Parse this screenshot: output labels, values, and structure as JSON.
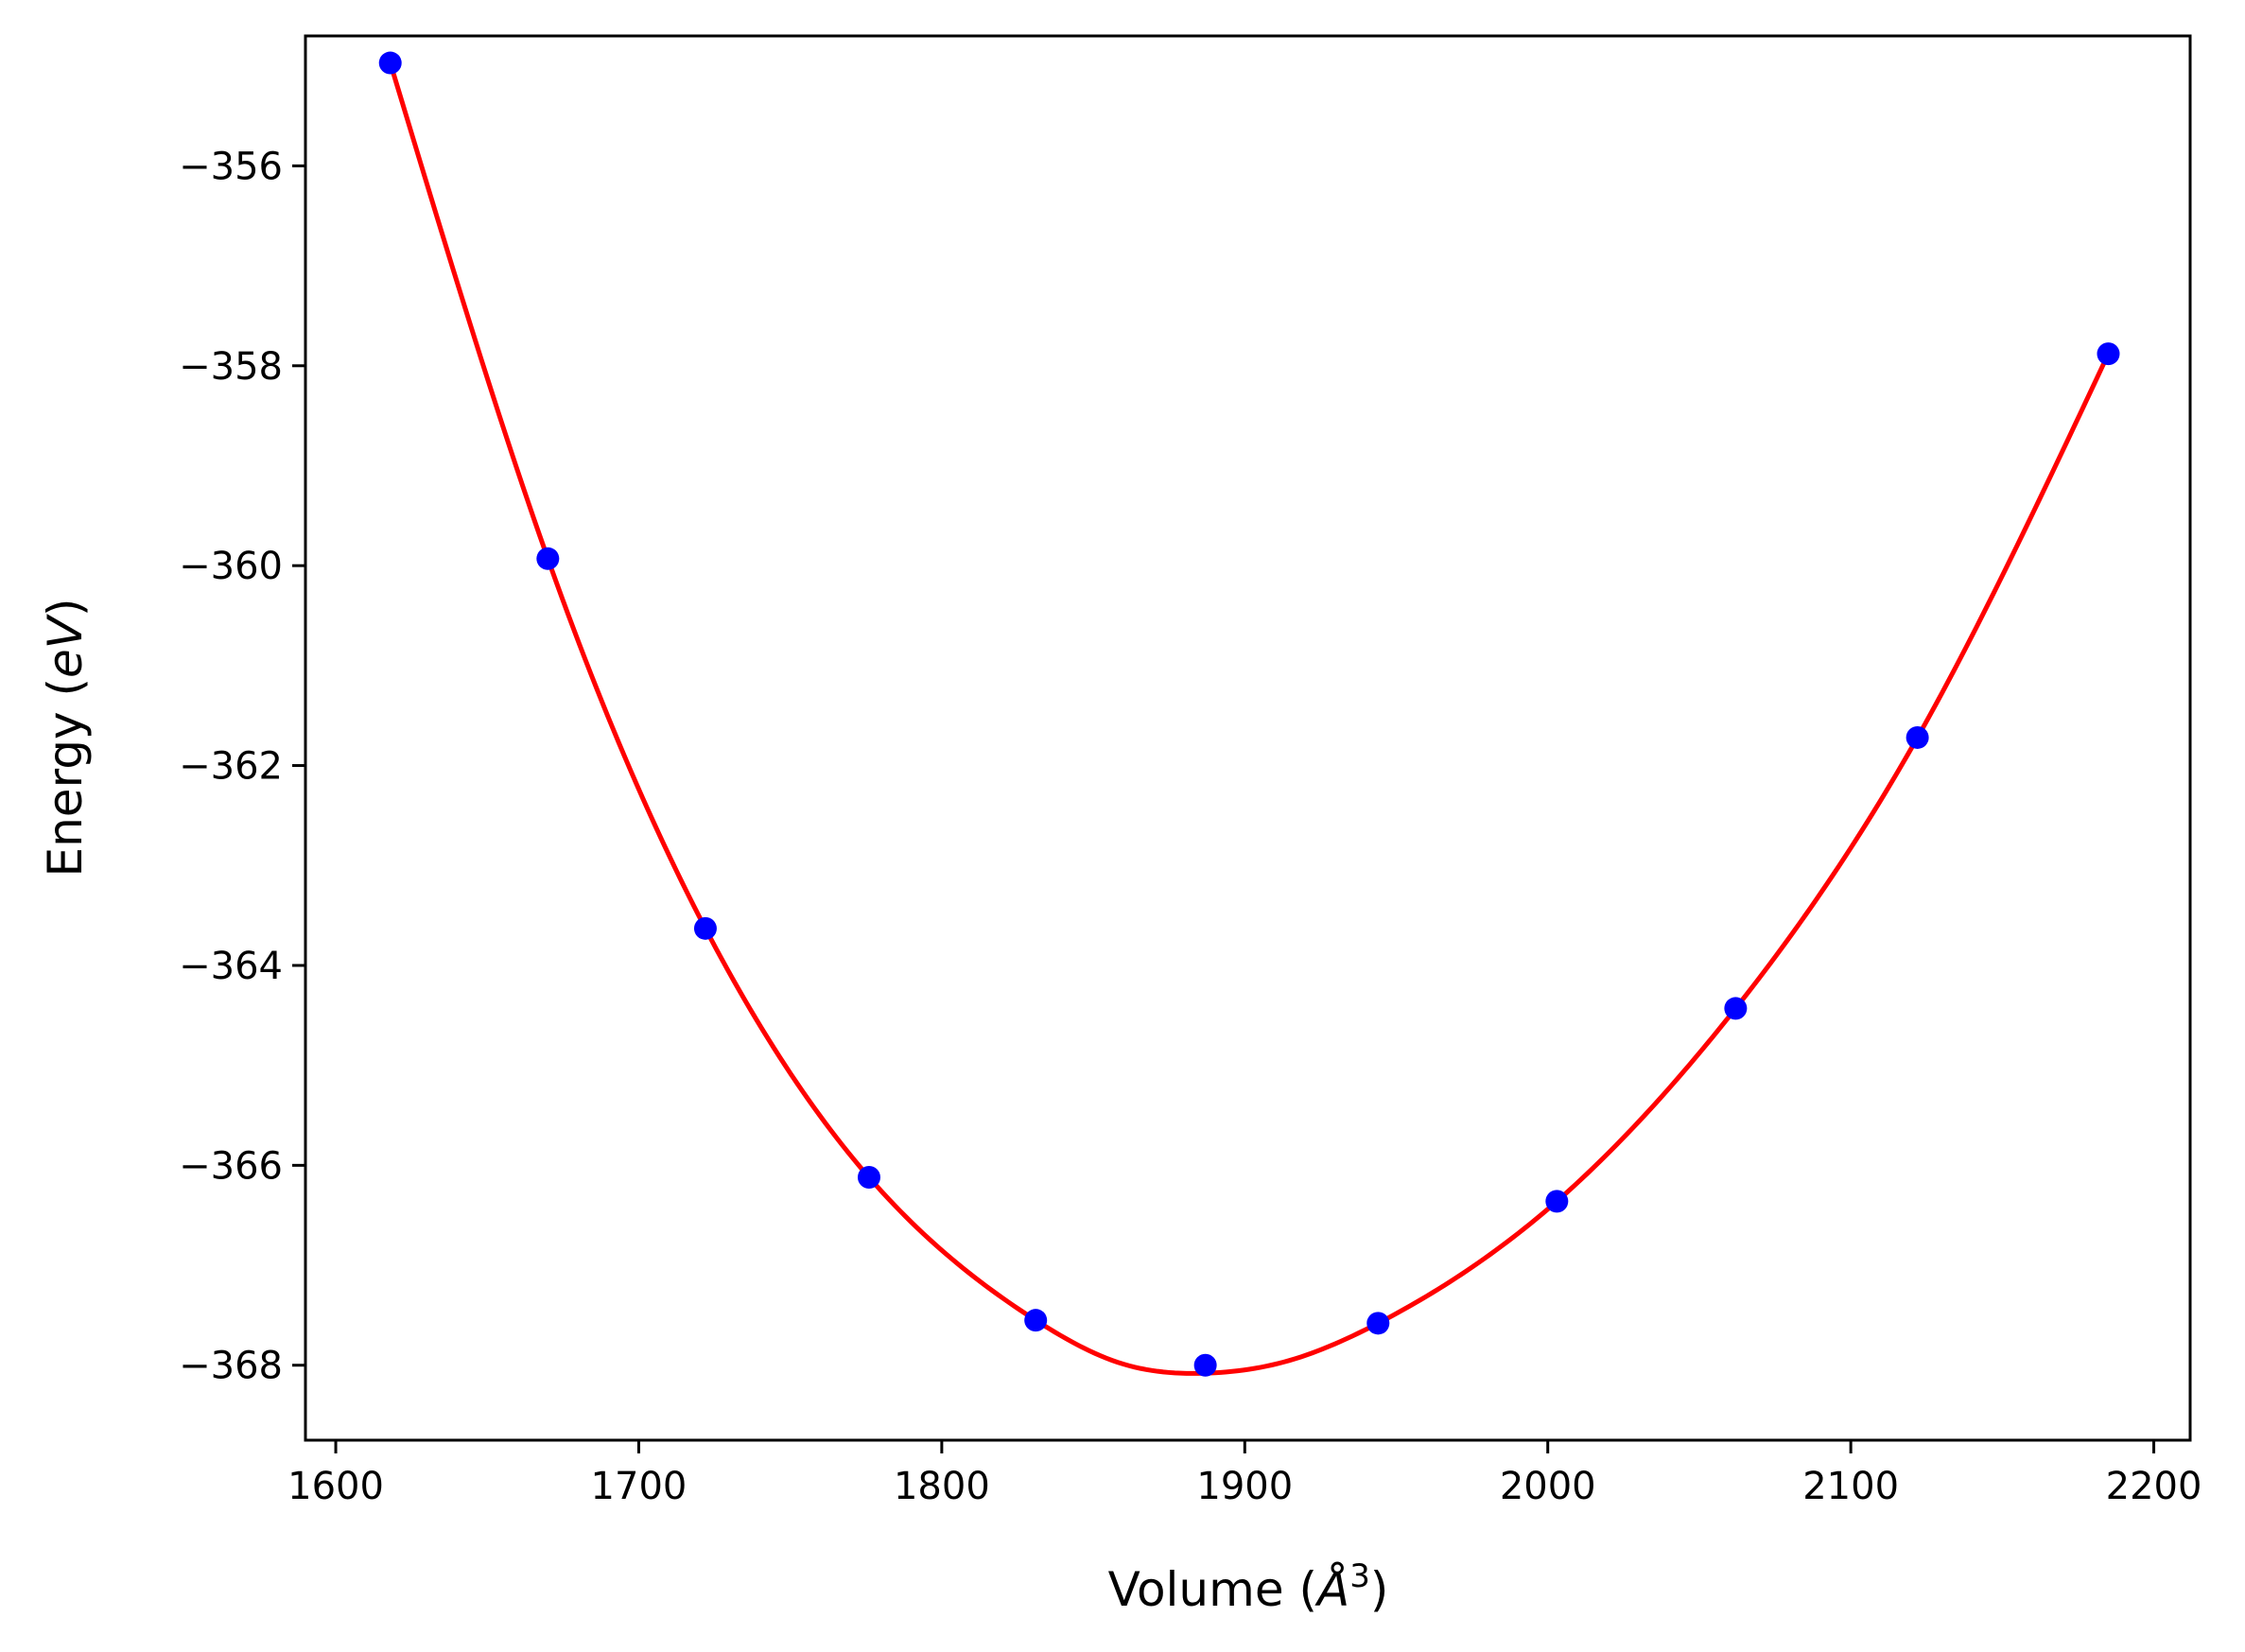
{
  "chart_data": {
    "type": "scatter",
    "title": "",
    "xlabel": {
      "prefix": "Volume (",
      "symbol": "Å",
      "superscript": "3",
      "suffix": ")"
    },
    "ylabel": {
      "prefix": "Energy (",
      "symbol": "eV",
      "suffix": ")"
    },
    "xlim": [
      1590,
      2212
    ],
    "ylim": [
      -368.75,
      -354.7
    ],
    "xticks": [
      1600,
      1700,
      1800,
      1900,
      2000,
      2100,
      2200
    ],
    "yticks": [
      -356,
      -358,
      -360,
      -362,
      -364,
      -366,
      -368
    ],
    "xtick_labels": [
      "1600",
      "1700",
      "1800",
      "1900",
      "2000",
      "2100",
      "2200"
    ],
    "ytick_labels": [
      "−356",
      "−358",
      "−360",
      "−362",
      "−364",
      "−366",
      "−368"
    ],
    "grid": false,
    "series": [
      {
        "kind": "points",
        "color": "#0000ff",
        "x": [
          1618,
          1670,
          1722,
          1776,
          1831,
          1887,
          1944,
          2003,
          2062,
          2122,
          2185
        ],
        "y": [
          -354.97,
          -359.93,
          -363.63,
          -366.12,
          -367.55,
          -368.0,
          -367.58,
          -366.36,
          -364.43,
          -361.72,
          -357.88
        ]
      },
      {
        "kind": "fit-curve",
        "color": "#ff0000",
        "x": [
          1618,
          1670,
          1722,
          1776,
          1831,
          1859,
          1887,
          1915,
          1944,
          2003,
          2062,
          2122,
          2185
        ],
        "y": [
          -354.97,
          -359.93,
          -363.63,
          -366.12,
          -367.55,
          -367.98,
          -368.08,
          -367.95,
          -367.58,
          -366.36,
          -364.43,
          -361.72,
          -357.88
        ]
      }
    ]
  }
}
